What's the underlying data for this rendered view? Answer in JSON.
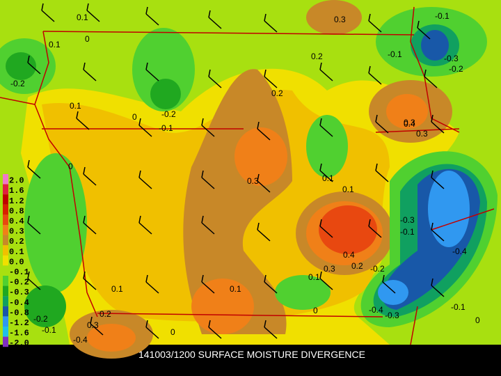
{
  "title": "141003/1200 SURFACE MOISTURE DIVERGENCE",
  "legend": [
    {
      "label": "2.0",
      "color": "#f078c8"
    },
    {
      "label": "1.6",
      "color": "#e02040"
    },
    {
      "label": "1.2",
      "color": "#c00000"
    },
    {
      "label": "0.8",
      "color": "#d82000"
    },
    {
      "label": "0.4",
      "color": "#e84810"
    },
    {
      "label": "0.3",
      "color": "#f08018"
    },
    {
      "label": "0.2",
      "color": "#c88828"
    },
    {
      "label": "0.1",
      "color": "#f0c000"
    },
    {
      "label": "0.0",
      "color": "#f0e000"
    },
    {
      "label": "-0.1",
      "color": "#a8e010"
    },
    {
      "label": "-0.2",
      "color": "#50d030"
    },
    {
      "label": "-0.3",
      "color": "#20a820"
    },
    {
      "label": "-0.4",
      "color": "#10a060"
    },
    {
      "label": "-0.8",
      "color": "#1858a8"
    },
    {
      "label": "-1.2",
      "color": "#3098f0"
    },
    {
      "label": "-1.6",
      "color": "#20c0e8"
    },
    {
      "label": "-2.0",
      "color": "#8030c0"
    }
  ],
  "contour_labels": [
    "0.1",
    "0",
    "0.1",
    "-0.2",
    "0.1",
    "0",
    "-0.2",
    "-0.1",
    "0.2",
    "0.3",
    "0.2",
    "0.3",
    "0.1",
    "0.1",
    "0.4",
    "0.3",
    "-0.1",
    "-0.3",
    "-0.2",
    "-0.1",
    "0.4",
    "0.3",
    "0.2",
    "0.1",
    "0.3",
    "-0.2",
    "-0.4",
    "-0.3",
    "-0.1",
    "0",
    "0.1",
    "0.1",
    "0",
    "-0.4",
    "-0.2",
    "-0.1",
    "0.3",
    "0.2",
    "-0.4",
    "-0.1",
    "-0.3",
    "0",
    "0"
  ]
}
